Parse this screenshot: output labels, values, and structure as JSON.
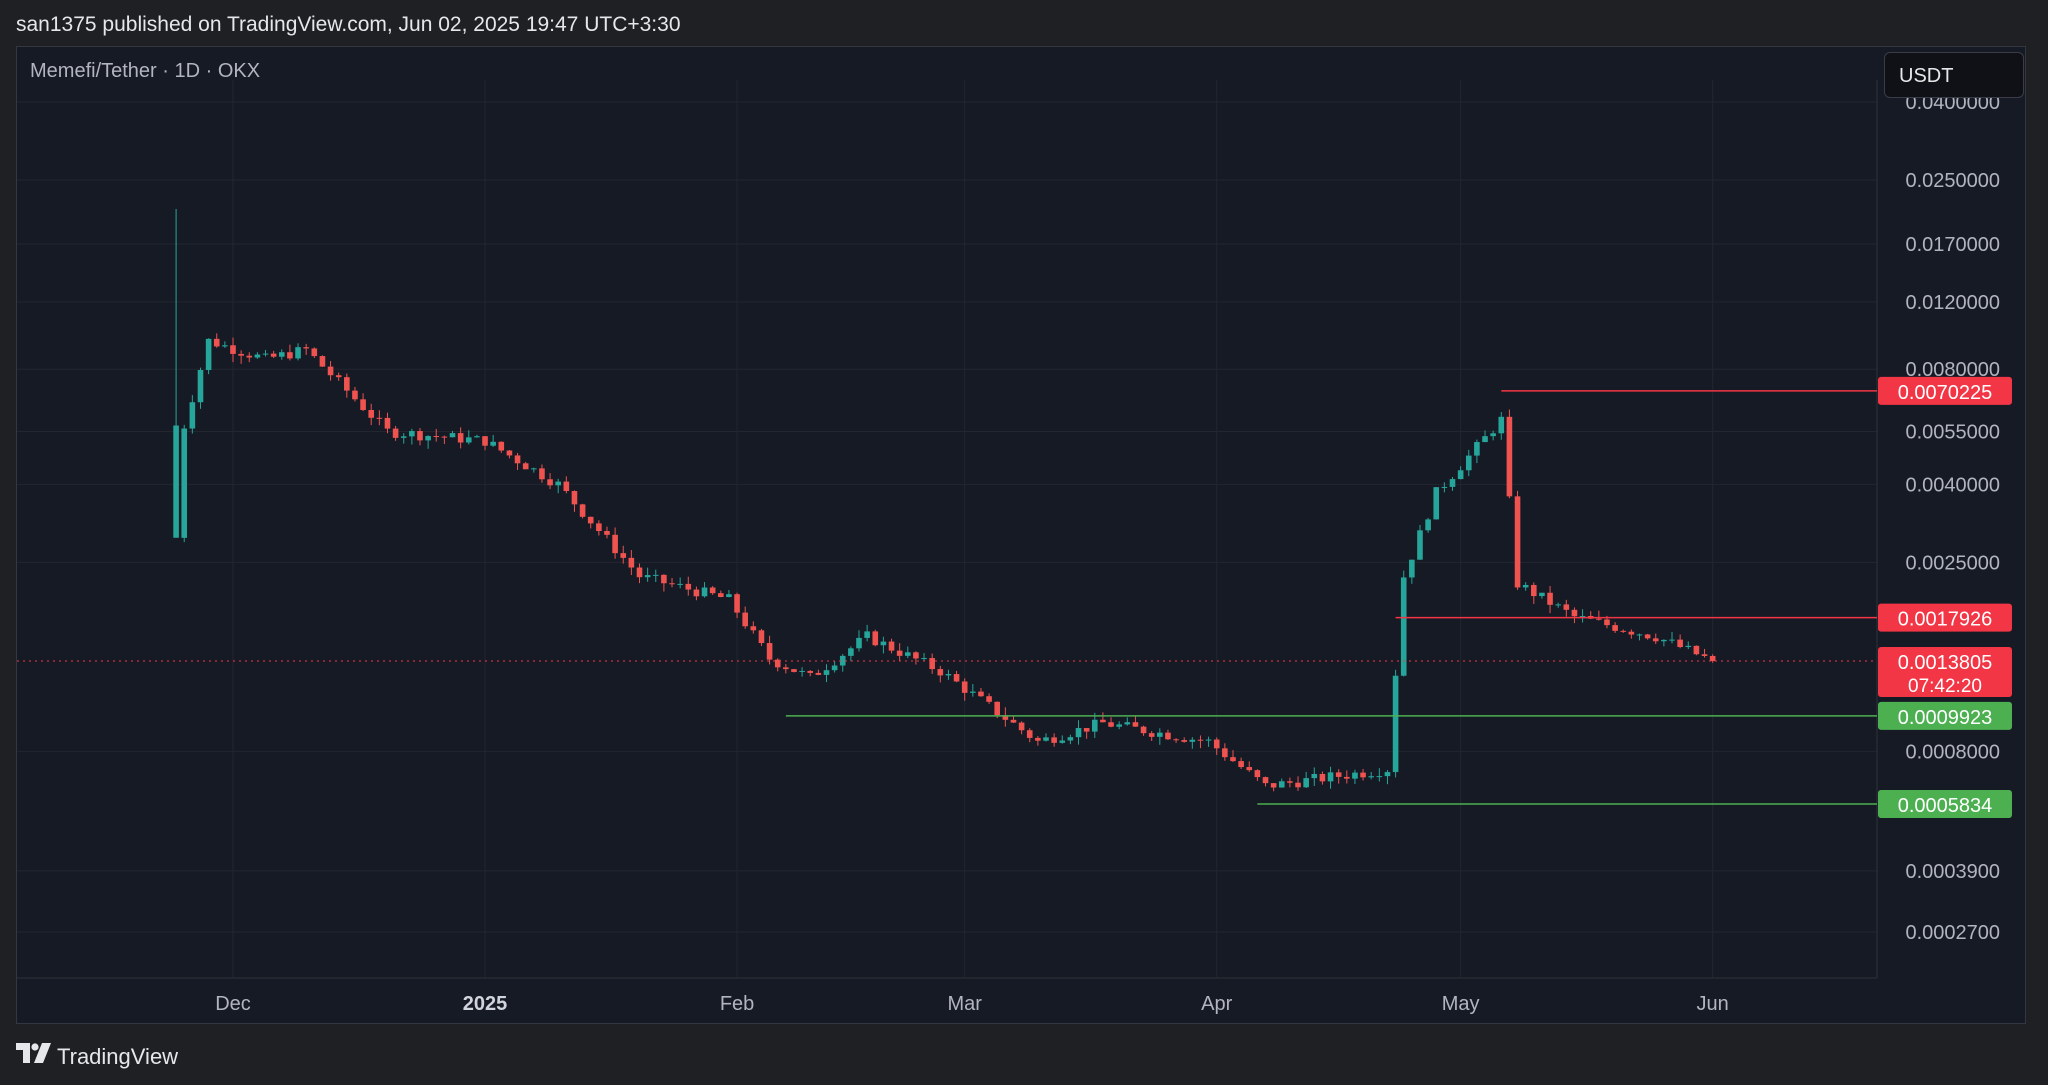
{
  "header": {
    "publish_line": "san1375 published on TradingView.com, Jun 02, 2025 19:47 UTC+3:30"
  },
  "chart": {
    "symbol_line": "Memefi/Tether · 1D · OKX",
    "currency": "USDT"
  },
  "footer": {
    "brand": "TradingView"
  },
  "colors": {
    "up": "#26a69a",
    "down": "#ef5350",
    "background": "#161a25",
    "grid": "#23262f",
    "text": "#b2b5be",
    "level_red": "#f23645",
    "level_green": "#4caf50"
  },
  "chart_data": {
    "type": "candlestick",
    "title": "Memefi/Tether · 1D · OKX",
    "y_scale": "log",
    "ylim": [
      0.00021,
      0.041
    ],
    "x_tick_labels": [
      {
        "label": "Dec",
        "date": "2024-12-01",
        "bold": false
      },
      {
        "label": "2025",
        "date": "2025-01-01",
        "bold": true
      },
      {
        "label": "Feb",
        "date": "2025-02-01",
        "bold": false
      },
      {
        "label": "Mar",
        "date": "2025-03-01",
        "bold": false
      },
      {
        "label": "Apr",
        "date": "2025-04-01",
        "bold": false
      },
      {
        "label": "May",
        "date": "2025-05-01",
        "bold": false
      },
      {
        "label": "Jun",
        "date": "2025-06-01",
        "bold": false
      }
    ],
    "y_tick_labels": [
      "0.0400000",
      "0.0250000",
      "0.0170000",
      "0.0120000",
      "0.0080000",
      "0.0055000",
      "0.0040000",
      "0.0025000",
      "0.0008000",
      "0.0003900",
      "0.0002700"
    ],
    "levels": [
      {
        "label": "0.0070225",
        "price": 0.0070225,
        "color": "red",
        "from_date": "2025-05-06"
      },
      {
        "label": "0.0017926",
        "price": 0.0017926,
        "color": "red",
        "from_date": "2025-04-23"
      },
      {
        "label": "0.0009923",
        "price": 0.0009923,
        "color": "green",
        "from_date": "2025-02-07"
      },
      {
        "label": "0.0005834",
        "price": 0.0005834,
        "color": "green",
        "from_date": "2025-04-06"
      }
    ],
    "current_price": {
      "label": "0.0013805",
      "price": 0.0013805,
      "countdown": "07:42:20"
    },
    "key_points": [
      {
        "date": "2024-11-24",
        "price": 0.0029
      },
      {
        "date": "2024-11-25",
        "price": 0.0057
      },
      {
        "date": "2024-11-28",
        "price": 0.0095
      },
      {
        "date": "2024-12-05",
        "price": 0.0085
      },
      {
        "date": "2024-12-10",
        "price": 0.009
      },
      {
        "date": "2024-12-20",
        "price": 0.0055
      },
      {
        "date": "2025-01-01",
        "price": 0.0052
      },
      {
        "date": "2025-01-10",
        "price": 0.004
      },
      {
        "date": "2025-01-20",
        "price": 0.0023
      },
      {
        "date": "2025-01-31",
        "price": 0.002
      },
      {
        "date": "2025-02-05",
        "price": 0.0014
      },
      {
        "date": "2025-02-10",
        "price": 0.00125
      },
      {
        "date": "2025-02-17",
        "price": 0.0016
      },
      {
        "date": "2025-02-26",
        "price": 0.0013
      },
      {
        "date": "2025-03-10",
        "price": 0.00085
      },
      {
        "date": "2025-03-18",
        "price": 0.00095
      },
      {
        "date": "2025-03-31",
        "price": 0.00085
      },
      {
        "date": "2025-04-07",
        "price": 0.00065
      },
      {
        "date": "2025-04-22",
        "price": 0.00072
      },
      {
        "date": "2025-04-24",
        "price": 0.0023
      },
      {
        "date": "2025-04-28",
        "price": 0.0038
      },
      {
        "date": "2025-05-06",
        "price": 0.0059
      },
      {
        "date": "2025-05-08",
        "price": 0.0022
      },
      {
        "date": "2025-05-15",
        "price": 0.0018
      },
      {
        "date": "2025-05-25",
        "price": 0.0016
      },
      {
        "date": "2025-06-01",
        "price": 0.00138
      }
    ]
  }
}
